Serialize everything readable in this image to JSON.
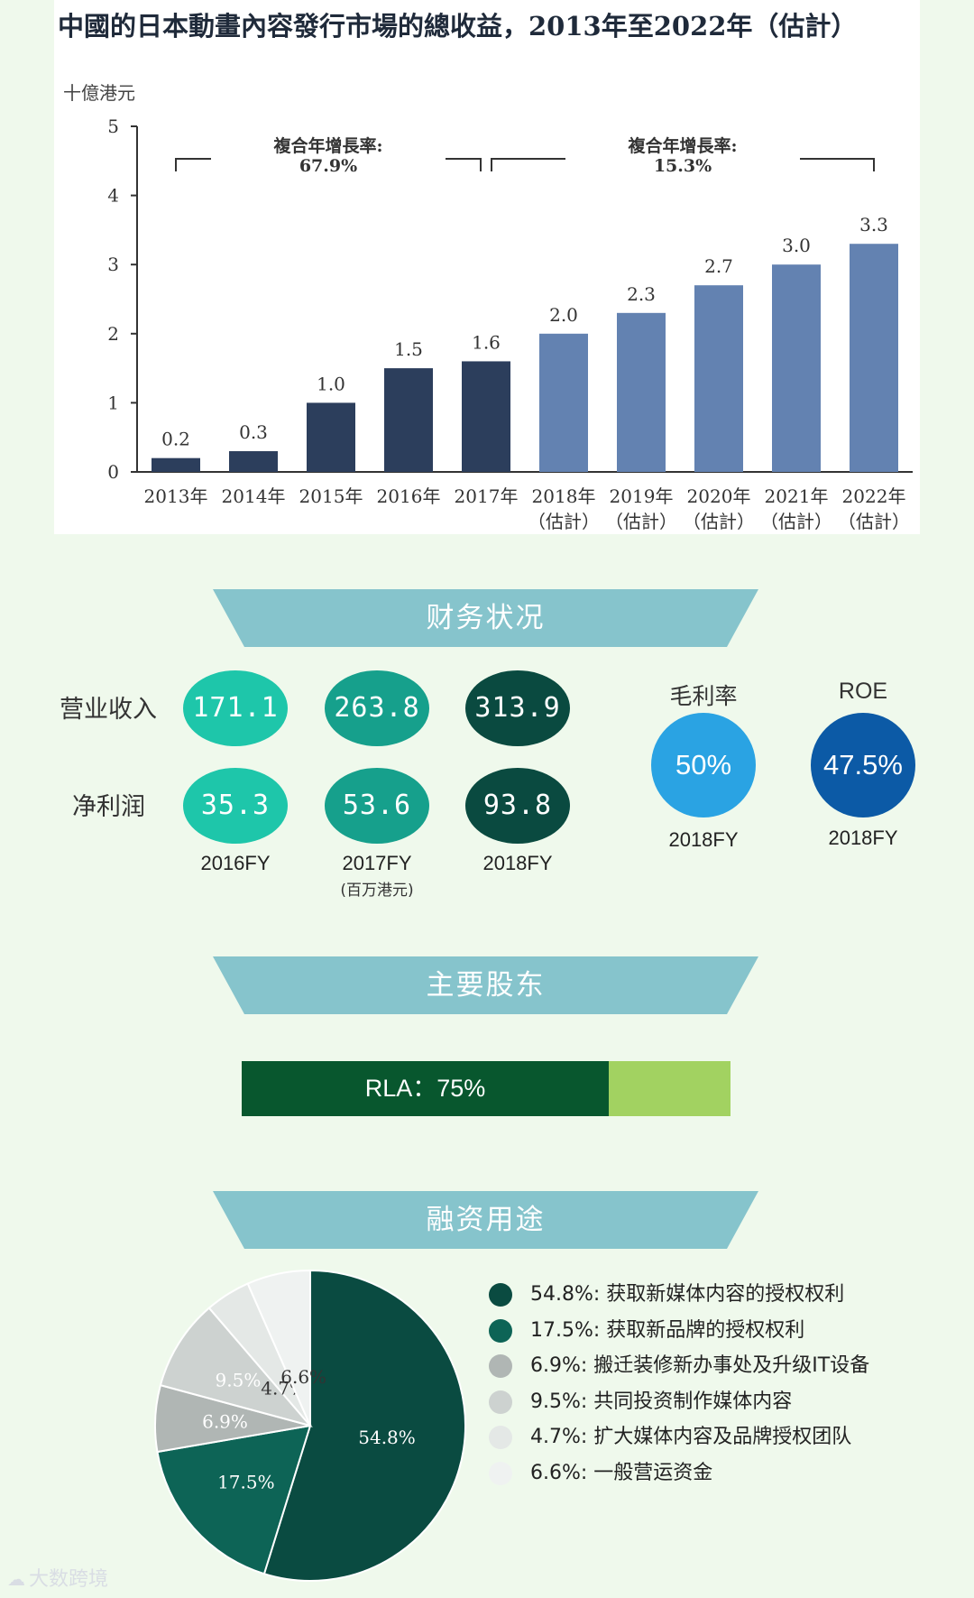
{
  "chart_data": [
    {
      "type": "bar",
      "title": "中國的日本動畫內容發行市場的總收益，2013年至2022年（估計）",
      "ylabel": "十億港元",
      "ylim": [
        0,
        5
      ],
      "yticks": [
        0,
        1,
        2,
        3,
        4,
        5
      ],
      "categories": [
        "2013年",
        "2014年",
        "2015年",
        "2016年",
        "2017年",
        "2018年",
        "2019年",
        "2020年",
        "2021年",
        "2022年"
      ],
      "category_notes": [
        "",
        "",
        "",
        "",
        "",
        "（估計）",
        "（估計）",
        "（估計）",
        "（估計）",
        "（估計）"
      ],
      "values": [
        0.2,
        0.3,
        1.0,
        1.5,
        1.6,
        2.0,
        2.3,
        2.7,
        3.0,
        3.3
      ],
      "value_labels": [
        "0.2",
        "0.3",
        "1.0",
        "1.5",
        "1.6",
        "2.0",
        "2.3",
        "2.7",
        "3.0",
        "3.3"
      ],
      "colors": {
        "actual": "#2c3e5c",
        "estimate": "#6382b1",
        "axis": "#333333"
      },
      "annotations": [
        {
          "label": "複合年增長率:",
          "value": "67.9%",
          "from": "2013年",
          "to": "2017年"
        },
        {
          "label": "複合年增長率:",
          "value": "15.3%",
          "from": "2017年",
          "to": "2022年"
        }
      ]
    },
    {
      "type": "pie",
      "values": [
        54.8,
        17.5,
        6.9,
        9.5,
        4.7,
        6.6
      ],
      "slice_labels": [
        "54.8%",
        "17.5%",
        "6.9%",
        "9.5%",
        "4.7%",
        "6.6%"
      ],
      "legend": [
        "54.8%: 获取新媒体内容的授权权利",
        "17.5%: 获取新品牌的授权权利",
        "6.9%: 搬迁装修新办事处及升级IT设备",
        "9.5%: 共同投资制作媒体内容",
        "4.7%: 扩大媒体内容及品牌授权团队",
        "6.6%: 一般营运资金"
      ],
      "colors": [
        "#0a4b41",
        "#0d6456",
        "#b0b6b4",
        "#cdd2d0",
        "#e4e8e6",
        "#eff2f1"
      ]
    }
  ],
  "finance": {
    "banner": "财务状况",
    "revenue_label": "营业收入",
    "profit_label": "净利润",
    "revenue": [
      "171.1",
      "263.8",
      "313.9"
    ],
    "profit": [
      "35.3",
      "53.6",
      "93.8"
    ],
    "years": [
      "2016FY",
      "2017FY",
      "2018FY"
    ],
    "unit": "(百万港元)",
    "gross_margin": {
      "title": "毛利率",
      "value": "50%",
      "year": "2018FY",
      "color": "#2aa3e3"
    },
    "roe": {
      "title": "ROE",
      "value": "47.5%",
      "year": "2018FY",
      "color": "#0c5aa6"
    },
    "colors": {
      "light": "#1ec6aa",
      "mid": "#16a08c",
      "dark": "#0a4a40"
    }
  },
  "shareholders": {
    "banner": "主要股东",
    "label": "RLA：75%",
    "share": 0.75,
    "colors": {
      "main": "#08572e",
      "rest": "#a2d261"
    }
  },
  "use_of_funds": {
    "banner": "融资用途"
  },
  "banner_color": "#86c4cc",
  "watermark": "大数跨境"
}
